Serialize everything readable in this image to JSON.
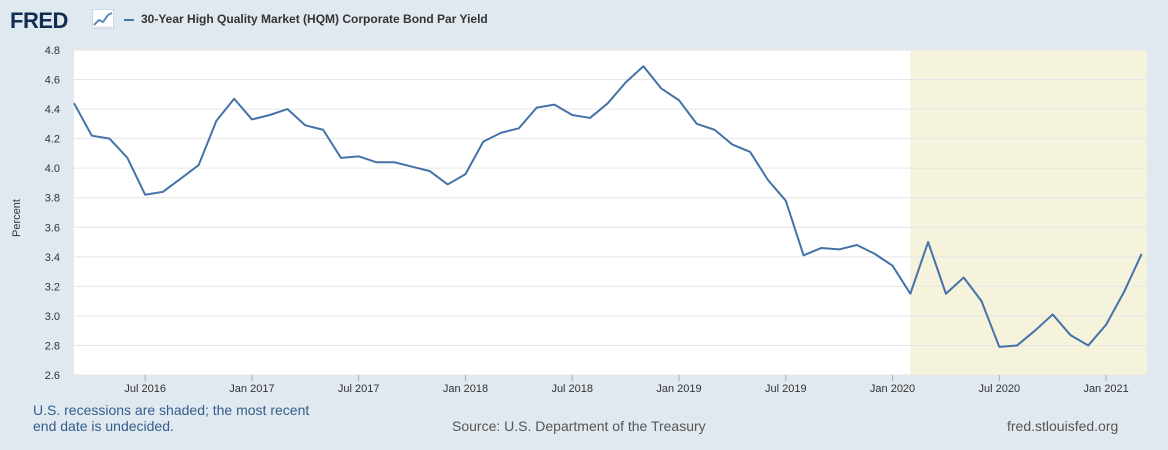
{
  "header": {
    "logo_text": "FRED",
    "legend_label": "30-Year High Quality Market (HQM) Corporate Bond Par Yield"
  },
  "footer": {
    "recession_note": "U.S. recessions are shaded; the most recent end date is undecided.",
    "source": "Source: U.S. Department of the Treasury",
    "site": "fred.stlouisfed.org"
  },
  "colors": {
    "series": "#4572a7",
    "recession": "#f5f3db",
    "plot_bg": "#ffffff",
    "page_bg": "#e1e9f0"
  },
  "chart_data": {
    "type": "line",
    "title": "30-Year High Quality Market (HQM) Corporate Bond Par Yield",
    "ylabel": "Percent",
    "xlabel": "",
    "ylim": [
      2.6,
      4.8
    ],
    "yticks": [
      2.6,
      2.8,
      3.0,
      3.2,
      3.4,
      3.6,
      3.8,
      4.0,
      4.2,
      4.4,
      4.6,
      4.8
    ],
    "x_start": "2016-03",
    "x_range": [
      0,
      60.3
    ],
    "xticks": [
      {
        "label": "Jul 2016",
        "index": 4
      },
      {
        "label": "Jan 2017",
        "index": 10
      },
      {
        "label": "Jul 2017",
        "index": 16
      },
      {
        "label": "Jan 2018",
        "index": 22
      },
      {
        "label": "Jul 2018",
        "index": 28
      },
      {
        "label": "Jan 2019",
        "index": 34
      },
      {
        "label": "Jul 2019",
        "index": 40
      },
      {
        "label": "Jan 2020",
        "index": 46
      },
      {
        "label": "Jul 2020",
        "index": 52
      },
      {
        "label": "Jan 2021",
        "index": 58
      }
    ],
    "recession": {
      "start_index": 47,
      "end_index": 60.3
    },
    "series": [
      {
        "name": "30-Year High Quality Market (HQM) Corporate Bond Par Yield",
        "values": [
          4.44,
          4.22,
          4.2,
          4.07,
          3.82,
          3.84,
          3.93,
          4.02,
          4.32,
          4.47,
          4.33,
          4.36,
          4.4,
          4.29,
          4.26,
          4.07,
          4.08,
          4.04,
          4.04,
          4.01,
          3.98,
          3.89,
          3.96,
          4.18,
          4.24,
          4.27,
          4.41,
          4.43,
          4.36,
          4.34,
          4.44,
          4.58,
          4.69,
          4.54,
          4.46,
          4.3,
          4.26,
          4.16,
          4.11,
          3.92,
          3.78,
          3.41,
          3.46,
          3.45,
          3.48,
          3.42,
          3.34,
          3.15,
          3.5,
          3.15,
          3.26,
          3.1,
          2.79,
          2.8,
          2.9,
          3.01,
          2.87,
          2.8,
          2.94,
          3.16,
          3.42
        ]
      }
    ]
  }
}
